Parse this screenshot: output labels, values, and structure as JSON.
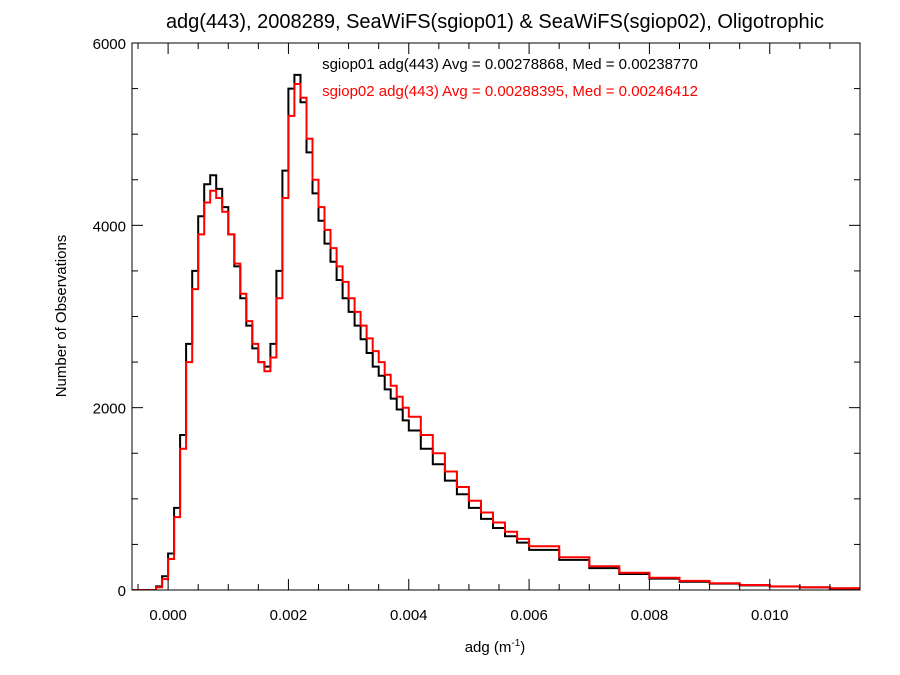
{
  "chart_data": {
    "type": "line",
    "title": "adg(443), 2008289, SeaWiFS(sgiop01) & SeaWiFS(sgiop02), Oligotrophic",
    "xlabel_main": "adg (m",
    "xlabel_sup": "-1",
    "xlabel_close": ")",
    "ylabel": "Number of Observations",
    "xlim": [
      -0.0006,
      0.0115
    ],
    "ylim": [
      0,
      6000
    ],
    "xticks": [
      0.0,
      0.002,
      0.004,
      0.006,
      0.008,
      0.01
    ],
    "xtick_labels": [
      "0.000",
      "0.002",
      "0.004",
      "0.006",
      "0.008",
      "0.010"
    ],
    "yticks": [
      0,
      2000,
      4000,
      6000
    ],
    "ytick_labels": [
      "0",
      "2000",
      "4000",
      "6000"
    ],
    "grid": false,
    "legend_position": "top-center",
    "series": [
      {
        "label": "sgiop01 adg(443) Avg = 0.00278868, Med = 0.00238770",
        "color": "#000000",
        "x": [
          -0.0006,
          -0.0004,
          -0.0002,
          -0.0001,
          0.0,
          0.0001,
          0.0002,
          0.0003,
          0.0004,
          0.0005,
          0.0006,
          0.0007,
          0.0008,
          0.0009,
          0.001,
          0.0011,
          0.0012,
          0.0013,
          0.0014,
          0.0015,
          0.0016,
          0.0017,
          0.0018,
          0.0019,
          0.002,
          0.0021,
          0.0022,
          0.0023,
          0.0024,
          0.0025,
          0.0026,
          0.0027,
          0.0028,
          0.0029,
          0.003,
          0.0031,
          0.0032,
          0.0033,
          0.0034,
          0.0035,
          0.0036,
          0.0037,
          0.0038,
          0.0039,
          0.004,
          0.0042,
          0.0044,
          0.0046,
          0.0048,
          0.005,
          0.0052,
          0.0054,
          0.0056,
          0.0058,
          0.006,
          0.0065,
          0.007,
          0.0075,
          0.008,
          0.0085,
          0.009,
          0.0095,
          0.01,
          0.0105,
          0.011,
          0.0115
        ],
        "y": [
          0,
          0,
          40,
          150,
          400,
          900,
          1700,
          2700,
          3500,
          4100,
          4450,
          4550,
          4400,
          4200,
          3900,
          3550,
          3200,
          2900,
          2650,
          2500,
          2450,
          2700,
          3500,
          4600,
          5500,
          5650,
          5350,
          4800,
          4350,
          4050,
          3800,
          3600,
          3400,
          3200,
          3050,
          2900,
          2750,
          2600,
          2450,
          2350,
          2200,
          2100,
          1980,
          1860,
          1750,
          1550,
          1380,
          1200,
          1050,
          900,
          780,
          680,
          590,
          520,
          440,
          330,
          240,
          175,
          125,
          90,
          70,
          50,
          38,
          28,
          18,
          12
        ]
      },
      {
        "label": "sgiop02 adg(443) Avg = 0.00288395, Med = 0.00246412",
        "color": "#ff0000",
        "x": [
          -0.0006,
          -0.0004,
          -0.0002,
          -0.0001,
          0.0,
          0.0001,
          0.0002,
          0.0003,
          0.0004,
          0.0005,
          0.0006,
          0.0007,
          0.0008,
          0.0009,
          0.001,
          0.0011,
          0.0012,
          0.0013,
          0.0014,
          0.0015,
          0.0016,
          0.0017,
          0.0018,
          0.0019,
          0.002,
          0.0021,
          0.0022,
          0.0023,
          0.0024,
          0.0025,
          0.0026,
          0.0027,
          0.0028,
          0.0029,
          0.003,
          0.0031,
          0.0032,
          0.0033,
          0.0034,
          0.0035,
          0.0036,
          0.0037,
          0.0038,
          0.0039,
          0.004,
          0.0042,
          0.0044,
          0.0046,
          0.0048,
          0.005,
          0.0052,
          0.0054,
          0.0056,
          0.0058,
          0.006,
          0.0065,
          0.007,
          0.0075,
          0.008,
          0.0085,
          0.009,
          0.0095,
          0.01,
          0.0105,
          0.011,
          0.0115
        ],
        "y": [
          0,
          0,
          30,
          120,
          340,
          800,
          1550,
          2500,
          3300,
          3900,
          4250,
          4380,
          4300,
          4150,
          3900,
          3580,
          3250,
          2950,
          2700,
          2500,
          2400,
          2550,
          3200,
          4300,
          5200,
          5550,
          5400,
          4950,
          4500,
          4200,
          3950,
          3750,
          3550,
          3380,
          3200,
          3050,
          2900,
          2760,
          2620,
          2500,
          2360,
          2240,
          2120,
          2000,
          1900,
          1700,
          1500,
          1300,
          1130,
          980,
          850,
          740,
          640,
          560,
          480,
          360,
          260,
          190,
          135,
          100,
          75,
          55,
          40,
          30,
          20,
          14
        ]
      }
    ]
  }
}
